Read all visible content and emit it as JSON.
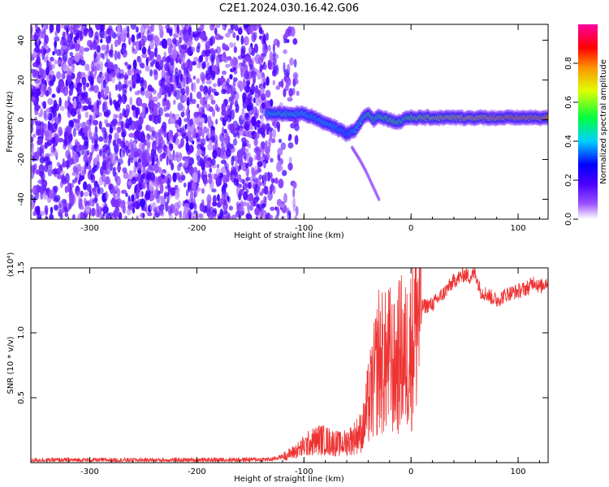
{
  "title": "C2E1.2024.030.16.42.G06",
  "chart_data": [
    {
      "type": "heatmap",
      "xlabel": "Height of straight line (km)",
      "ylabel": "Frequency (Hz)",
      "xlim": [
        -355,
        128
      ],
      "ylim": [
        -50,
        48
      ],
      "xticks": [
        -300,
        -200,
        -100,
        0,
        100
      ],
      "xtick_labels": [
        "-300",
        "-200",
        "-100",
        "0",
        "100"
      ],
      "yticks": [
        -40,
        -20,
        0,
        20,
        40
      ],
      "ytick_labels": [
        "-40",
        "-20",
        "0",
        "20",
        "40"
      ],
      "colorbar": {
        "label": "Normalized spectral amplitude",
        "range": [
          0.0,
          1.0
        ],
        "ticks": [
          0.0,
          0.2,
          0.4,
          0.6,
          0.8
        ],
        "tick_labels": [
          "0.0",
          "0.2",
          "0.4",
          "0.6",
          "0.8"
        ],
        "colormap": "rainbow (violet-blue-cyan-green-yellow-red-magenta)"
      },
      "noise_region": {
        "x_range": [
          -355,
          -115
        ],
        "amplitude": 0.15
      },
      "signal_track": {
        "x": [
          -135,
          -120,
          -100,
          -90,
          -80,
          -70,
          -60,
          -55,
          -50,
          -45,
          -40,
          -35,
          -30,
          -25,
          -20,
          -15,
          -10,
          -5,
          0,
          10,
          30,
          60,
          90,
          110,
          128
        ],
        "y": [
          3,
          3,
          3,
          1,
          -2,
          -4,
          -7,
          -6,
          -4,
          1,
          3,
          0,
          2,
          1,
          0,
          -1,
          -1,
          1,
          1,
          1,
          1,
          1,
          1,
          1,
          1
        ],
        "amplitude": [
          0.4,
          0.45,
          0.4,
          0.35,
          0.4,
          0.35,
          0.3,
          0.35,
          0.4,
          0.45,
          0.55,
          0.5,
          0.5,
          0.55,
          0.55,
          0.6,
          0.5,
          0.55,
          0.6,
          0.65,
          0.7,
          0.75,
          0.8,
          0.8,
          0.8
        ]
      },
      "secondary_branch": {
        "x": [
          -55,
          -48,
          -42,
          -36,
          -30
        ],
        "y": [
          -14,
          -20,
          -26,
          -33,
          -40
        ]
      },
      "grid": false
    },
    {
      "type": "line",
      "xlabel": "Height of straight line (km)",
      "ylabel": "SNR (10 * v/v)",
      "y_multiplier_label": "(x10⁴)",
      "xlim": [
        -355,
        128
      ],
      "ylim": [
        0,
        15000
      ],
      "xticks": [
        -300,
        -200,
        -100,
        0,
        100
      ],
      "xtick_labels": [
        "-300",
        "-200",
        "-100",
        "0",
        "100"
      ],
      "yticks": [
        5000,
        10000,
        15000
      ],
      "ytick_labels": [
        "0.5",
        "1.0",
        "1.5"
      ],
      "color": "#ee3333",
      "series": [
        {
          "x": [
            -355,
            -300,
            -200,
            -130,
            -115,
            -105,
            -95,
            -85,
            -75,
            -65,
            -55,
            -45,
            -40,
            -35,
            -30,
            -25,
            -20,
            -15,
            -10,
            -5,
            0,
            5,
            10,
            20,
            30,
            40,
            50,
            55,
            60,
            65,
            70,
            80,
            90,
            100,
            110,
            115,
            120,
            128
          ],
          "y": [
            200,
            200,
            200,
            250,
            600,
            1000,
            1500,
            1800,
            1600,
            1400,
            1800,
            2500,
            4500,
            6000,
            8000,
            7500,
            8000,
            7000,
            8500,
            8000,
            9000,
            11500,
            12000,
            12200,
            13000,
            14000,
            14500,
            14300,
            14600,
            13200,
            13000,
            12500,
            13000,
            13200,
            13500,
            14000,
            13500,
            14000
          ]
        }
      ],
      "grid": false
    }
  ]
}
